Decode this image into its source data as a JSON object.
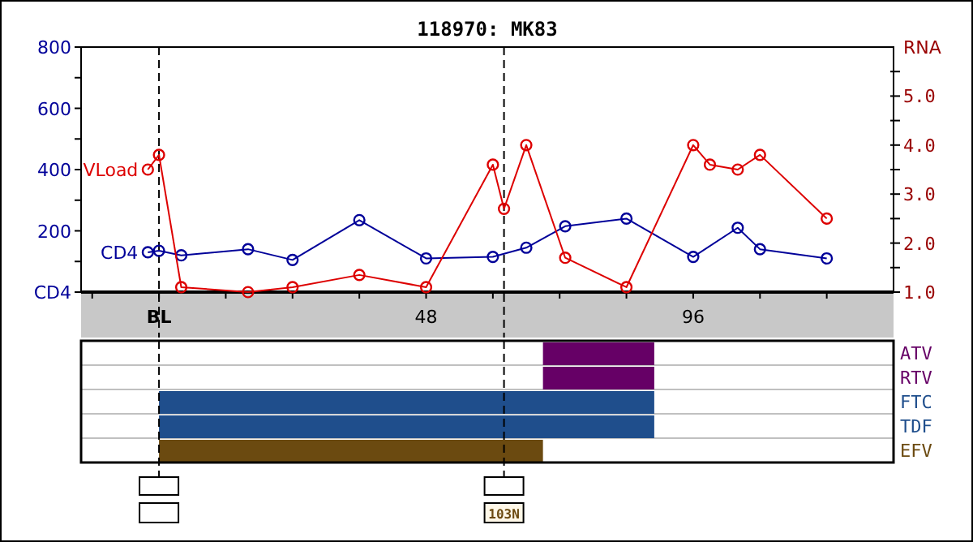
{
  "chart_data": [
    {
      "type": "line",
      "title": "118970: MK83",
      "y2label": "RNA",
      "marker": "circle",
      "xlim": [
        -14,
        132
      ],
      "xticks": [
        {
          "value": -12,
          "label": null
        },
        {
          "value": 0,
          "label": "BL"
        },
        {
          "value": 12,
          "label": null
        },
        {
          "value": 24,
          "label": null
        },
        {
          "value": 36,
          "label": null
        },
        48,
        {
          "value": 60,
          "label": null
        },
        {
          "value": 72,
          "label": null
        },
        {
          "value": 84,
          "label": null
        },
        96,
        {
          "value": 108,
          "label": null
        },
        {
          "value": 120,
          "label": null
        }
      ],
      "ylim": [
        0,
        800
      ],
      "yticks": [
        {
          "value": 0,
          "label": "CD4"
        },
        {
          "value": 100,
          "label": null
        },
        200,
        {
          "value": 300,
          "label": null
        },
        400,
        {
          "value": 500,
          "label": null
        },
        600,
        {
          "value": 700,
          "label": null
        },
        800
      ],
      "y2lim": [
        1,
        6
      ],
      "y2ticks": [
        {
          "value": 1,
          "label": "1.0"
        },
        {
          "value": 1.5,
          "label": null
        },
        {
          "value": 2,
          "label": "2.0"
        },
        {
          "value": 2.5,
          "label": null
        },
        {
          "value": 3,
          "label": "3.0"
        },
        {
          "value": 3.5,
          "label": null
        },
        {
          "value": 4,
          "label": "4.0"
        },
        {
          "value": 4.5,
          "label": null
        },
        {
          "value": 5,
          "label": "5.0"
        },
        {
          "value": 5.5,
          "label": null
        }
      ],
      "ref_lines": [
        {
          "axis": "x",
          "value": 0,
          "line_style": "dashed",
          "color": "#000000"
        },
        {
          "axis": "x",
          "value": 62,
          "line_style": "dashed",
          "color": "#000000"
        }
      ],
      "series": [
        {
          "name": "CD4",
          "color": "#000099",
          "x": [
            -2,
            0,
            4,
            16,
            24,
            36,
            48,
            60,
            66,
            73,
            84,
            96,
            104,
            108,
            120
          ],
          "values": [
            130,
            135,
            120,
            140,
            105,
            235,
            110,
            115,
            145,
            215,
            240,
            115,
            210,
            140,
            110
          ]
        },
        {
          "name": "VLoad",
          "color": "#dd0000",
          "axis": "y2",
          "x": [
            -2,
            0,
            4,
            16,
            24,
            36,
            48,
            60,
            62,
            66,
            73,
            84,
            96,
            99,
            104,
            108,
            120
          ],
          "values": [
            3.5,
            3.8,
            1.1,
            1.0,
            1.1,
            1.35,
            1.1,
            3.6,
            2.7,
            4.0,
            1.7,
            1.1,
            4.0,
            3.6,
            3.5,
            3.8,
            2.5
          ]
        }
      ]
    },
    {
      "type": "bar",
      "orientation": "horizontal",
      "tick_labels": "y",
      "xlim": [
        -14,
        132
      ],
      "categories": [
        "ATV",
        "RTV",
        "FTC",
        "TDF",
        "EFV"
      ],
      "base": [
        69,
        69,
        0,
        0,
        0
      ],
      "values": [
        20,
        20,
        89,
        89,
        69
      ],
      "colors": [
        "#660066",
        "#660066",
        "#1f4e8c",
        "#1f4e8c",
        "#6b4a10"
      ],
      "ref_lines": [
        {
          "axis": "x",
          "value": 0,
          "line_style": "dashed",
          "color": "#000000"
        },
        {
          "axis": "x",
          "value": 62,
          "line_style": "dashed",
          "color": "#000000"
        }
      ],
      "annotations": [
        "103N"
      ]
    }
  ]
}
